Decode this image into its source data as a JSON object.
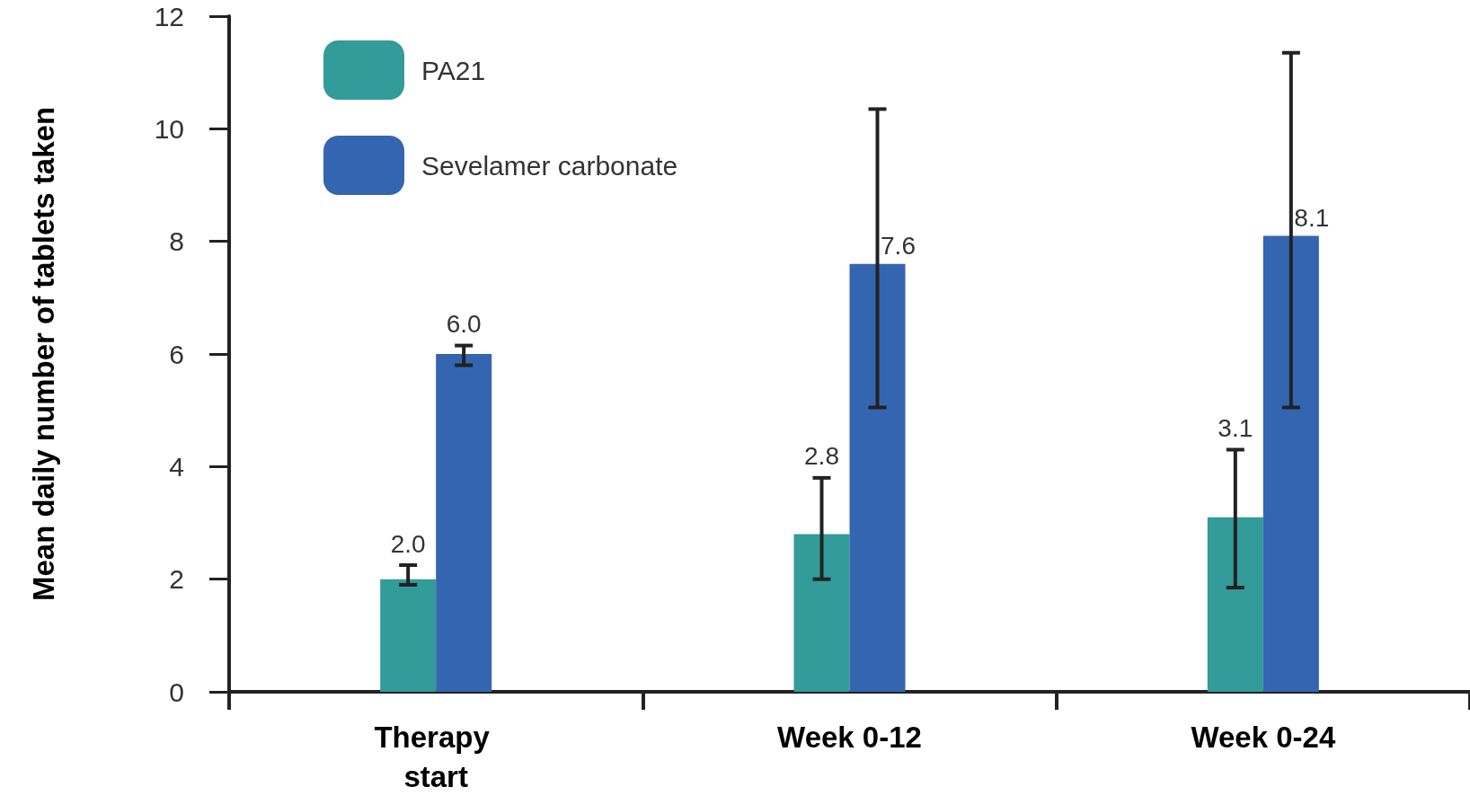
{
  "chart_data": {
    "type": "bar",
    "ylabel": "Mean daily number of tablets taken",
    "categories": [
      "Therapy start",
      "Week 0-12",
      "Week 0-24"
    ],
    "series": [
      {
        "name": "PA21",
        "color": "#339b99",
        "values": [
          2.0,
          2.8,
          3.1
        ],
        "value_labels": [
          "2.0",
          "2.8",
          "3.1"
        ],
        "errors": [
          [
            1.9,
            2.25
          ],
          [
            2.0,
            3.8
          ],
          [
            1.85,
            4.3
          ]
        ]
      },
      {
        "name": "Sevelamer carbonate",
        "color": "#3465b0",
        "values": [
          6.0,
          7.6,
          8.1
        ],
        "value_labels": [
          "6.0",
          "7.6",
          "8.1"
        ],
        "errors": [
          [
            5.8,
            6.15
          ],
          [
            5.05,
            10.35
          ],
          [
            5.05,
            11.35
          ]
        ]
      }
    ],
    "ylim": [
      0,
      12
    ],
    "yticks": [
      0,
      2,
      4,
      6,
      8,
      10,
      12
    ],
    "grid": false,
    "legend": "top left"
  }
}
